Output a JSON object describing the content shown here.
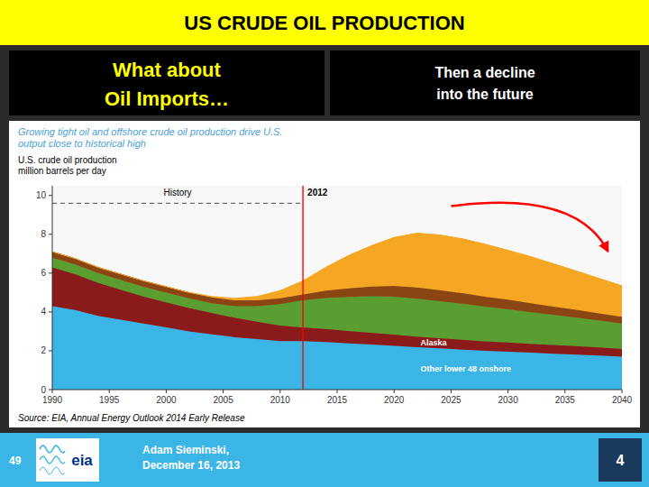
{
  "chart_data": {
    "type": "area",
    "stacked": true,
    "title": "US CRUDE OIL PRODUCTION",
    "subtitle": [
      "Growing tight oil and offshore crude oil production drive U.S.",
      "output close to historical high"
    ],
    "y_label": [
      "U.S. crude oil production",
      "million barrels per day"
    ],
    "source": "Source:  EIA, Annual Energy Outlook 2014 Early Release",
    "x": [
      1990,
      1992,
      1994,
      1996,
      1998,
      2000,
      2002,
      2004,
      2006,
      2008,
      2010,
      2012,
      2014,
      2016,
      2018,
      2020,
      2022,
      2024,
      2026,
      2028,
      2030,
      2032,
      2034,
      2036,
      2038,
      2040
    ],
    "xlim": [
      1990,
      2040
    ],
    "xticks": [
      1990,
      1995,
      2000,
      2005,
      2010,
      2015,
      2020,
      2025,
      2030,
      2035,
      2040
    ],
    "ylim": [
      0,
      10.5
    ],
    "yticks": [
      0,
      2,
      4,
      6,
      8,
      10
    ],
    "grid": false,
    "series": [
      {
        "name": "Other lower 48 onshore",
        "color": "#3ab5e6",
        "values": [
          4.3,
          4.1,
          3.8,
          3.6,
          3.4,
          3.2,
          3.0,
          2.85,
          2.7,
          2.6,
          2.5,
          2.5,
          2.45,
          2.38,
          2.32,
          2.25,
          2.18,
          2.12,
          2.06,
          2.0,
          1.95,
          1.9,
          1.85,
          1.8,
          1.75,
          1.7
        ]
      },
      {
        "name": "Alaska",
        "color": "#8b1a1a",
        "values": [
          2.0,
          1.85,
          1.7,
          1.55,
          1.4,
          1.3,
          1.2,
          1.1,
          1.0,
          0.9,
          0.8,
          0.7,
          0.67,
          0.64,
          0.61,
          0.58,
          0.55,
          0.53,
          0.51,
          0.49,
          0.48,
          0.46,
          0.45,
          0.44,
          0.42,
          0.4
        ]
      },
      {
        "color": "#5a9e32",
        "values": [
          0.5,
          0.5,
          0.5,
          0.5,
          0.5,
          0.5,
          0.5,
          0.5,
          0.6,
          0.8,
          1.1,
          1.4,
          1.6,
          1.75,
          1.88,
          1.95,
          1.95,
          1.9,
          1.85,
          1.78,
          1.7,
          1.62,
          1.54,
          1.46,
          1.38,
          1.3
        ]
      },
      {
        "color": "#8B4513",
        "values": [
          0.3,
          0.3,
          0.3,
          0.3,
          0.3,
          0.3,
          0.3,
          0.3,
          0.3,
          0.3,
          0.3,
          0.3,
          0.38,
          0.44,
          0.5,
          0.56,
          0.58,
          0.57,
          0.55,
          0.52,
          0.5,
          0.47,
          0.44,
          0.41,
          0.38,
          0.35
        ]
      },
      {
        "color": "#f5a623",
        "values": [
          0.0,
          0.0,
          0.0,
          0.0,
          0.0,
          0.0,
          0.0,
          0.05,
          0.1,
          0.2,
          0.4,
          0.7,
          1.2,
          1.7,
          2.1,
          2.5,
          2.8,
          2.85,
          2.8,
          2.7,
          2.55,
          2.4,
          2.2,
          2.0,
          1.8,
          1.6
        ]
      }
    ],
    "reference_lines": [
      {
        "y": 9.6,
        "x": [
          1990,
          2012
        ],
        "line_style": "dashed",
        "color": "#000000"
      },
      {
        "x": 2012,
        "color": "red"
      }
    ],
    "annotations": [
      {
        "text": "History"
      },
      {
        "text": "2012"
      },
      {
        "text": "Then a decline\ninto the future"
      },
      {
        "text": "What about"
      },
      {
        "text": "Oil Imports…"
      },
      {
        "text": "Adam Sieminski,\nDecember 16, 2013"
      },
      {
        "text": "49"
      },
      {
        "text": "4"
      },
      {
        "text": "eia"
      }
    ]
  }
}
